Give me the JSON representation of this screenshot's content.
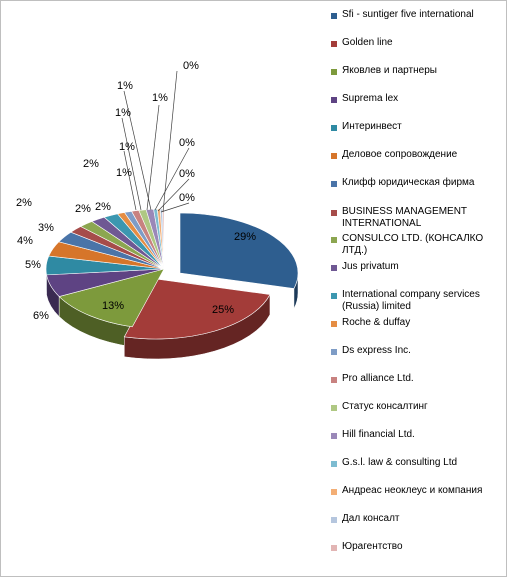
{
  "chart_data": {
    "type": "pie",
    "title": "",
    "legend_position": "right",
    "slices": [
      {
        "label": "Sfi - suntiger five international",
        "value_text": "29%",
        "value": 29,
        "color": "#2E5E8F"
      },
      {
        "label": "Golden line",
        "value_text": "25%",
        "value": 25,
        "color": "#A33C39"
      },
      {
        "label": "Яковлев и партнеры",
        "value_text": "13%",
        "value": 13,
        "color": "#7D9A3C"
      },
      {
        "label": "Suprema lex",
        "value_text": "6%",
        "value": 6,
        "color": "#5E4383"
      },
      {
        "label": "Интеринвест",
        "value_text": "5%",
        "value": 5,
        "color": "#2F8AA3"
      },
      {
        "label": "Деловое сопровождение",
        "value_text": "4%",
        "value": 4,
        "color": "#D6752A"
      },
      {
        "label": "Клифф юридическая фирма",
        "value_text": "3%",
        "value": 3,
        "color": "#4A74A8"
      },
      {
        "label": "BUSINESS MANAGEMENT INTERNATIONAL",
        "value_text": "2%",
        "value": 2,
        "color": "#A64C4A"
      },
      {
        "label": "CONSULCO LTD. (КОНСАЛКО ЛТД.)",
        "value_text": "2%",
        "value": 2,
        "color": "#8CA650"
      },
      {
        "label": "Jus privatum",
        "value_text": "2%",
        "value": 2,
        "color": "#6F5893"
      },
      {
        "label": "International company services (Russia) limited",
        "value_text": "2%",
        "value": 2,
        "color": "#3C97B0"
      },
      {
        "label": "Roche & duffay",
        "value_text": "1%",
        "value": 1,
        "color": "#E58D43"
      },
      {
        "label": "Ds express Inc.",
        "value_text": "1%",
        "value": 1,
        "color": "#7E9CC6"
      },
      {
        "label": "Pro alliance Ltd.",
        "value_text": "1%",
        "value": 1,
        "color": "#C88280"
      },
      {
        "label": "Статус консалтинг",
        "value_text": "1%",
        "value": 1,
        "color": "#AFC883"
      },
      {
        "label": "Hill financial Ltd.",
        "value_text": "1%",
        "value": 1,
        "color": "#9A88B8"
      },
      {
        "label": "G.s.l. law & consulting Ltd",
        "value_text": "0%",
        "value": 0.5,
        "color": "#7DBCD1"
      },
      {
        "label": "Андреас неоклеус и компания",
        "value_text": "0%",
        "value": 0.4,
        "color": "#F3AE75"
      },
      {
        "label": "Дал консалт",
        "value_text": "0%",
        "value": 0.3,
        "color": "#B5C6DE"
      },
      {
        "label": "Юрагентство",
        "value_text": "0%",
        "value": 0.2,
        "color": "#E2B5B4"
      }
    ]
  }
}
